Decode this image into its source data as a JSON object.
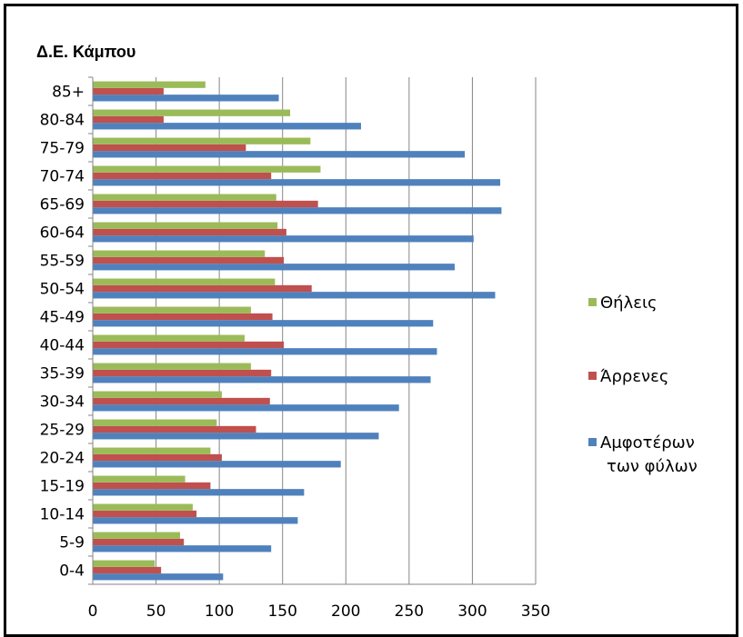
{
  "chart_data": {
    "type": "bar",
    "orientation": "horizontal",
    "title": "Δ.Ε. Κάμπου",
    "categories": [
      "0-4",
      "5-9",
      "10-14",
      "15-19",
      "20-24",
      "25-29",
      "30-34",
      "35-39",
      "40-44",
      "45-49",
      "50-54",
      "55-59",
      "60-64",
      "65-69",
      "70-74",
      "75-79",
      "80-84",
      "85+"
    ],
    "series": [
      {
        "name": "Αμφοτέρων των φύλων",
        "name_lines": [
          "Αμφοτέρων",
          "των φύλων"
        ],
        "color": "#4F81BD",
        "values": [
          103,
          141,
          162,
          167,
          196,
          226,
          242,
          267,
          272,
          269,
          318,
          286,
          301,
          323,
          322,
          294,
          212,
          147
        ]
      },
      {
        "name": "Άρρενες",
        "color": "#C0504D",
        "values": [
          54,
          72,
          82,
          93,
          102,
          129,
          140,
          141,
          151,
          142,
          173,
          151,
          153,
          178,
          141,
          121,
          56,
          56
        ]
      },
      {
        "name": "Θήλεις",
        "color": "#9BBB59",
        "values": [
          49,
          69,
          79,
          73,
          93,
          98,
          102,
          125,
          120,
          125,
          144,
          136,
          146,
          145,
          180,
          172,
          156,
          89
        ]
      }
    ],
    "xlim": [
      0,
      350
    ],
    "xticks": [
      0,
      50,
      100,
      150,
      200,
      250,
      300,
      350
    ],
    "grid": true,
    "legend_position": "right"
  }
}
